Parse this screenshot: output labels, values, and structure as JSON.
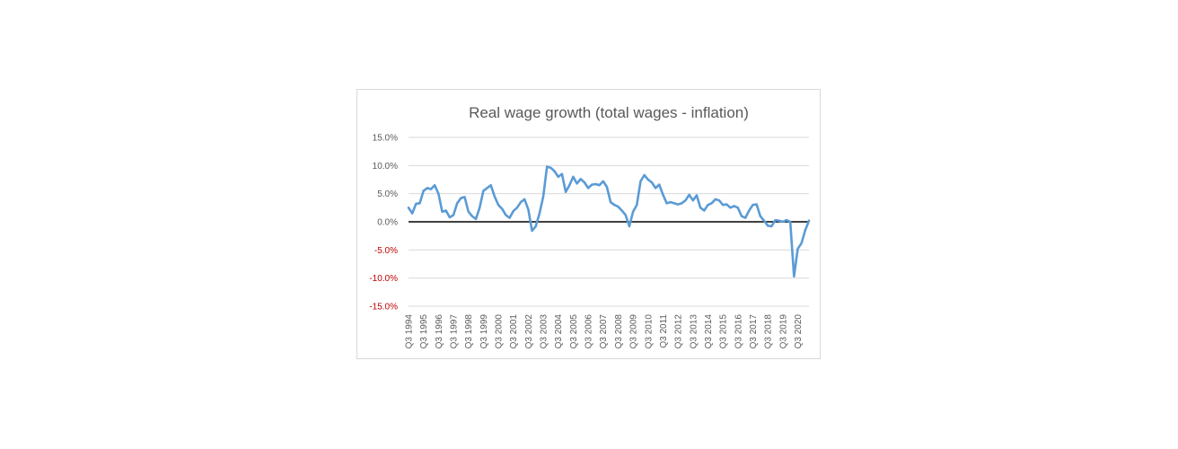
{
  "chart_data": {
    "type": "line",
    "title": "Real wage growth (total wages - inflation)",
    "xlabel": "",
    "ylabel": "",
    "ylim": [
      -0.15,
      0.15
    ],
    "yticks": [
      {
        "value": 0.15,
        "label": "15.0%"
      },
      {
        "value": 0.1,
        "label": "10.0%"
      },
      {
        "value": 0.05,
        "label": "5.0%"
      },
      {
        "value": 0.0,
        "label": "0.0%"
      },
      {
        "value": -0.05,
        "label": "-5.0%"
      },
      {
        "value": -0.1,
        "label": "-10.0%"
      },
      {
        "value": -0.15,
        "label": "-15.0%"
      }
    ],
    "xticks": [
      "Q3 1994",
      "Q3 1995",
      "Q3 1996",
      "Q3 1997",
      "Q3 1998",
      "Q3 1999",
      "Q3 2000",
      "Q3 2001",
      "Q3 2002",
      "Q3 2003",
      "Q3 2004",
      "Q3 2005",
      "Q3 2006",
      "Q3 2007",
      "Q3 2008",
      "Q3 2009",
      "Q3 2010",
      "Q3 2011",
      "Q3 2012",
      "Q3 2013",
      "Q3 2014",
      "Q3 2015",
      "Q3 2016",
      "Q3 2017",
      "Q3 2018",
      "Q3 2019",
      "Q3 2020"
    ],
    "x_start": "Q3 1994",
    "x_end": "Q1 2021",
    "grid": true,
    "legend": "none",
    "zero_line_color": "#000000",
    "negative_label_color": "#c00000",
    "positive_label_color": "#595959",
    "series": [
      {
        "color": "#5b9bd5",
        "values": [
          0.025,
          0.015,
          0.032,
          0.033,
          0.055,
          0.06,
          0.058,
          0.065,
          0.05,
          0.018,
          0.02,
          0.008,
          0.012,
          0.033,
          0.042,
          0.044,
          0.018,
          0.01,
          0.005,
          0.025,
          0.055,
          0.06,
          0.065,
          0.045,
          0.03,
          0.023,
          0.012,
          0.007,
          0.019,
          0.025,
          0.035,
          0.04,
          0.022,
          -0.016,
          -0.008,
          0.015,
          0.045,
          0.098,
          0.096,
          0.09,
          0.08,
          0.085,
          0.053,
          0.065,
          0.08,
          0.068,
          0.076,
          0.07,
          0.06,
          0.066,
          0.067,
          0.065,
          0.072,
          0.062,
          0.035,
          0.03,
          0.027,
          0.02,
          0.012,
          -0.008,
          0.018,
          0.03,
          0.072,
          0.083,
          0.075,
          0.07,
          0.06,
          0.066,
          0.048,
          0.033,
          0.035,
          0.033,
          0.031,
          0.033,
          0.038,
          0.048,
          0.038,
          0.047,
          0.025,
          0.02,
          0.03,
          0.033,
          0.04,
          0.038,
          0.03,
          0.031,
          0.025,
          0.028,
          0.025,
          0.01,
          0.007,
          0.02,
          0.03,
          0.031,
          0.01,
          0.002,
          -0.007,
          -0.008,
          0.003,
          0.002,
          0.0,
          0.003,
          0.0,
          -0.097,
          -0.048,
          -0.038,
          -0.015,
          0.002
        ]
      }
    ]
  }
}
